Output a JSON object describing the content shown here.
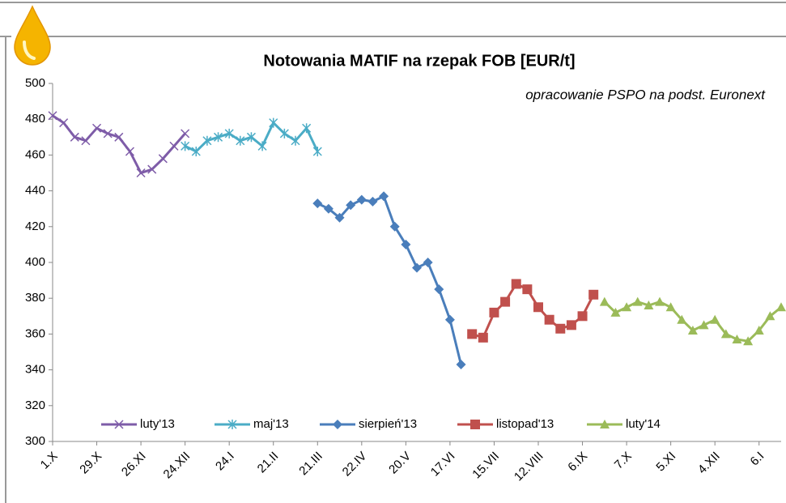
{
  "chart_data": {
    "type": "line",
    "title": "Notowania MATIF na rzepak FOB [EUR/t]",
    "subtitle": "opracowanie PSPO na podst. Euronext",
    "categories": [
      "1.X",
      null,
      null,
      null,
      "29.X",
      null,
      null,
      null,
      "26.XI",
      null,
      null,
      null,
      "24.XII",
      null,
      null,
      null,
      "24.I",
      null,
      null,
      null,
      "21.II",
      null,
      null,
      null,
      "21.III",
      null,
      null,
      null,
      "22.IV",
      null,
      null,
      null,
      "20.V",
      null,
      null,
      null,
      "17.VI",
      null,
      null,
      null,
      "15.VII",
      null,
      null,
      null,
      "12.VIII",
      null,
      null,
      null,
      "6.IX",
      null,
      null,
      null,
      "7.X",
      null,
      null,
      null,
      "5.XI",
      null,
      null,
      null,
      "4.XII",
      null,
      null,
      null,
      "6.I",
      null,
      null
    ],
    "ylim": [
      300,
      500
    ],
    "yticks": [
      300,
      320,
      340,
      360,
      380,
      400,
      420,
      440,
      460,
      480,
      500
    ],
    "legend": "bottom",
    "series": [
      {
        "name": "luty'13",
        "color": "#7e5ca8",
        "marker": "x",
        "values": [
          482,
          478,
          470,
          468,
          475,
          472,
          470,
          462,
          450,
          452,
          458,
          465,
          472,
          null,
          null,
          null,
          null,
          null,
          null,
          null,
          null,
          null,
          null,
          null,
          null,
          null,
          null,
          null,
          null,
          null,
          null,
          null,
          null,
          null,
          null,
          null,
          null,
          null,
          null,
          null,
          null,
          null,
          null,
          null,
          null,
          null,
          null,
          null,
          null,
          null,
          null,
          null,
          null,
          null,
          null,
          null,
          null,
          null,
          null,
          null,
          null,
          null,
          null,
          null,
          null,
          null,
          null
        ]
      },
      {
        "name": "maj'13",
        "color": "#4bacc6",
        "marker": "star",
        "values": [
          null,
          null,
          null,
          null,
          null,
          null,
          null,
          null,
          null,
          null,
          null,
          null,
          465,
          462,
          468,
          470,
          472,
          468,
          470,
          465,
          478,
          472,
          468,
          475,
          462,
          null,
          null,
          null,
          null,
          null,
          null,
          null,
          null,
          null,
          null,
          null,
          null,
          null,
          null,
          null,
          null,
          null,
          null,
          null,
          null,
          null,
          null,
          null,
          null,
          null,
          null,
          null,
          null,
          null,
          null,
          null,
          null,
          null,
          null,
          null,
          null,
          null,
          null,
          null,
          null,
          null,
          null
        ]
      },
      {
        "name": "sierpień'13",
        "color": "#4a7ebb",
        "marker": "diamond",
        "values": [
          null,
          null,
          null,
          null,
          null,
          null,
          null,
          null,
          null,
          null,
          null,
          null,
          null,
          null,
          null,
          null,
          null,
          null,
          null,
          null,
          null,
          null,
          null,
          null,
          433,
          430,
          425,
          432,
          435,
          434,
          437,
          420,
          410,
          397,
          400,
          385,
          368,
          343,
          null,
          null,
          null,
          null,
          null,
          null,
          null,
          null,
          null,
          null,
          null,
          null,
          null,
          null,
          null,
          null,
          null,
          null,
          null,
          null,
          null,
          null,
          null,
          null,
          null,
          null,
          null,
          null,
          null
        ]
      },
      {
        "name": "listopad'13",
        "color": "#c0504d",
        "marker": "square",
        "values": [
          null,
          null,
          null,
          null,
          null,
          null,
          null,
          null,
          null,
          null,
          null,
          null,
          null,
          null,
          null,
          null,
          null,
          null,
          null,
          null,
          null,
          null,
          null,
          null,
          null,
          null,
          null,
          null,
          null,
          null,
          null,
          null,
          null,
          null,
          null,
          null,
          null,
          null,
          360,
          358,
          372,
          378,
          388,
          385,
          375,
          368,
          363,
          365,
          370,
          382,
          null,
          null,
          null,
          null,
          null,
          null,
          null,
          null,
          null,
          null,
          null,
          null,
          null,
          null,
          null,
          null,
          null
        ]
      },
      {
        "name": "luty'14",
        "color": "#9bbb59",
        "marker": "triangle",
        "values": [
          null,
          null,
          null,
          null,
          null,
          null,
          null,
          null,
          null,
          null,
          null,
          null,
          null,
          null,
          null,
          null,
          null,
          null,
          null,
          null,
          null,
          null,
          null,
          null,
          null,
          null,
          null,
          null,
          null,
          null,
          null,
          null,
          null,
          null,
          null,
          null,
          null,
          null,
          null,
          null,
          null,
          null,
          null,
          null,
          null,
          null,
          null,
          null,
          null,
          null,
          378,
          372,
          375,
          378,
          376,
          378,
          375,
          368,
          362,
          365,
          368,
          360,
          357,
          356,
          362,
          370,
          375
        ]
      }
    ]
  }
}
